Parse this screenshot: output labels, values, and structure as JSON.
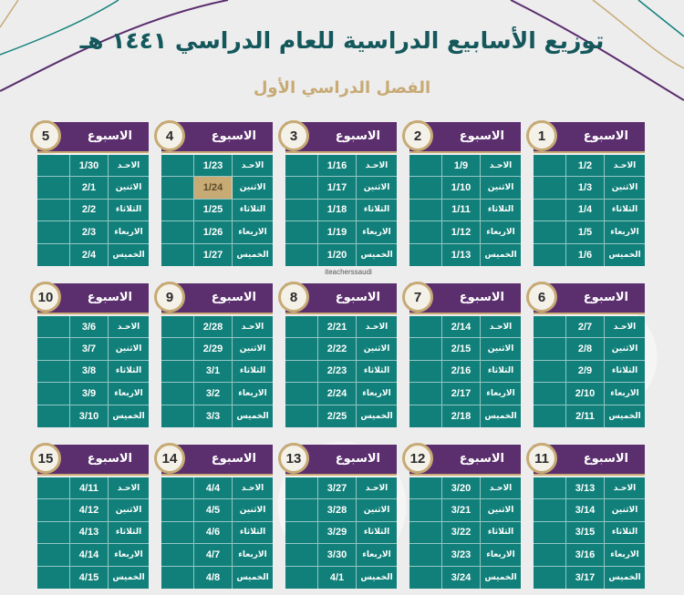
{
  "title": "توزيع الأسابيع الدراسية للعام الدراسي ١٤٤١ هـ",
  "subtitle": "الفصل الدراسي الأول",
  "watermark": "iteacherssaudi",
  "week_label": "الاسبوع",
  "days": [
    "الاحـد",
    "الاثنين",
    "الثلاثاء",
    "الاربعاء",
    "الخميس"
  ],
  "colors": {
    "header": "#5b2e6e",
    "body": "#11807a",
    "accent": "#c7aa74",
    "title": "#14585c"
  },
  "weeks": [
    {
      "number": "1",
      "label": "الاسبوع",
      "dates": [
        "1/2",
        "1/3",
        "1/4",
        "1/5",
        "1/6"
      ]
    },
    {
      "number": "2",
      "label": "الاسبوع",
      "dates": [
        "1/9",
        "1/10",
        "1/11",
        "1/12",
        "1/13"
      ]
    },
    {
      "number": "3",
      "label": "الاسبوع",
      "dates": [
        "1/16",
        "1/17",
        "1/18",
        "1/19",
        "1/20"
      ]
    },
    {
      "number": "4",
      "label": "الاسبوع",
      "dates": [
        "1/23",
        "1/24",
        "1/25",
        "1/26",
        "1/27"
      ],
      "highlight": 1
    },
    {
      "number": "5",
      "label": "الاسبوع",
      "dates": [
        "1/30",
        "2/1",
        "2/2",
        "2/3",
        "2/4"
      ]
    },
    {
      "number": "6",
      "label": "الاسبوع",
      "dates": [
        "2/7",
        "2/8",
        "2/9",
        "2/10",
        "2/11"
      ]
    },
    {
      "number": "7",
      "label": "الاسبوع",
      "dates": [
        "2/14",
        "2/15",
        "2/16",
        "2/17",
        "2/18"
      ]
    },
    {
      "number": "8",
      "label": "الاسبوع",
      "dates": [
        "2/21",
        "2/22",
        "2/23",
        "2/24",
        "2/25"
      ]
    },
    {
      "number": "9",
      "label": "الاسبوع",
      "dates": [
        "2/28",
        "2/29",
        "3/1",
        "3/2",
        "3/3"
      ]
    },
    {
      "number": "10",
      "label": "الاسبوع",
      "dates": [
        "3/6",
        "3/7",
        "3/8",
        "3/9",
        "3/10"
      ]
    },
    {
      "number": "11",
      "label": "الاسبوع",
      "dates": [
        "3/13",
        "3/14",
        "3/15",
        "3/16",
        "3/17"
      ]
    },
    {
      "number": "12",
      "label": "الاسبوع",
      "dates": [
        "3/20",
        "3/21",
        "3/22",
        "3/23",
        "3/24"
      ]
    },
    {
      "number": "13",
      "label": "الاسبوع",
      "dates": [
        "3/27",
        "3/28",
        "3/29",
        "3/30",
        "4/1"
      ]
    },
    {
      "number": "14",
      "label": "الاسبوع",
      "dates": [
        "4/4",
        "4/5",
        "4/6",
        "4/7",
        "4/8"
      ]
    },
    {
      "number": "15",
      "label": "الاسبوع",
      "dates": [
        "4/11",
        "4/12",
        "4/13",
        "4/14",
        "4/15"
      ]
    }
  ]
}
